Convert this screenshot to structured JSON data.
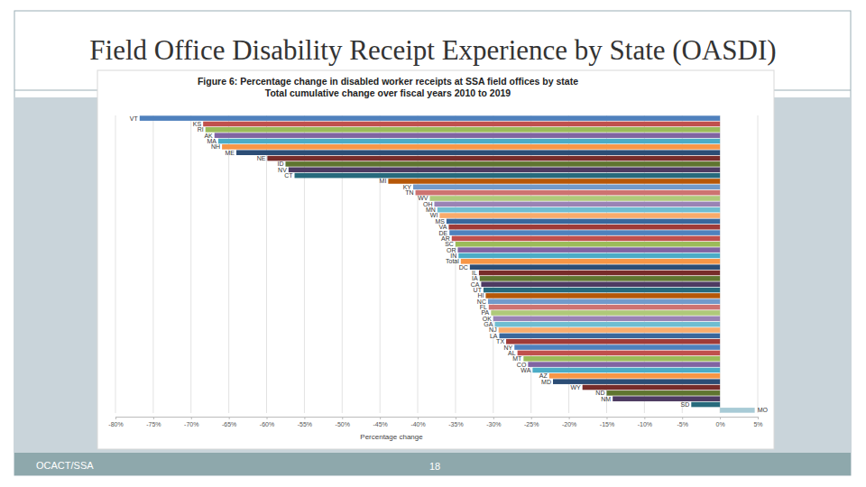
{
  "slide": {
    "title": "Field Office Disability Receipt Experience by State (OASDI)",
    "footer": "OCACT/SSA",
    "page_number": "18"
  },
  "chart_data": {
    "type": "bar",
    "orientation": "horizontal",
    "title": "Figure 6: Percentage change in disabled worker receipts at SSA field offices by state",
    "subtitle": "Total cumulative change over fiscal years 2010 to 2019",
    "xlabel": "Percentage change",
    "categories": [
      "VT",
      "KS",
      "RI",
      "AK",
      "MA",
      "NH",
      "ME",
      "NE",
      "ID",
      "NV",
      "CT",
      "MI",
      "KY",
      "TN",
      "WV",
      "OH",
      "MN",
      "WI",
      "MS",
      "VA",
      "DE",
      "AR",
      "SC",
      "OR",
      "IN",
      "Total",
      "DC",
      "IL",
      "IA",
      "CA",
      "UT",
      "HI",
      "NC",
      "FL",
      "PA",
      "OK",
      "GA",
      "NJ",
      "LA",
      "TX",
      "NY",
      "AL",
      "MT",
      "CO",
      "WA",
      "AZ",
      "MD",
      "WY",
      "ND",
      "NM",
      "SD",
      "MO"
    ],
    "values": [
      -76.8,
      -68.4,
      -68.1,
      -66.9,
      -66.4,
      -65.9,
      -64.0,
      -59.9,
      -57.5,
      -57.1,
      -56.3,
      -43.9,
      -40.6,
      -40.3,
      -38.4,
      -37.8,
      -37.4,
      -37.1,
      -36.2,
      -35.9,
      -35.8,
      -35.5,
      -35.0,
      -34.7,
      -34.6,
      -34.3,
      -33.1,
      -31.9,
      -31.8,
      -31.6,
      -31.3,
      -31.0,
      -30.7,
      -30.6,
      -30.3,
      -30.0,
      -29.8,
      -29.3,
      -29.2,
      -28.3,
      -27.2,
      -26.8,
      -26.0,
      -25.4,
      -24.8,
      -22.6,
      -22.1,
      -18.2,
      -15.0,
      -14.2,
      -3.8,
      4.6
    ],
    "colors": [
      "#4f81bd",
      "#c0504d",
      "#9bbb59",
      "#8064a2",
      "#4bacc6",
      "#f79646",
      "#2c4d75",
      "#772c2a",
      "#5f7530",
      "#4d3b62",
      "#276a7c",
      "#b65708",
      "#729aca",
      "#cd7371",
      "#afc97a",
      "#9983b5",
      "#6fbdd1",
      "#f9ab6b",
      "#3a679c",
      "#9f3b38",
      "#4f81bd",
      "#c0504d",
      "#9bbb59",
      "#8064a2",
      "#4bacc6",
      "#f79646",
      "#2c4d75",
      "#772c2a",
      "#5f7530",
      "#4d3b62",
      "#276a7c",
      "#b65708",
      "#729aca",
      "#cd7371",
      "#afc97a",
      "#9983b5",
      "#6fbdd1",
      "#f9ab6b",
      "#3a679c",
      "#9f3b38",
      "#4f81bd",
      "#c0504d",
      "#9bbb59",
      "#8064a2",
      "#4bacc6",
      "#f79646",
      "#2c4d75",
      "#772c2a",
      "#5f7530",
      "#4d3b62",
      "#276a7c",
      "#a8cbd6"
    ],
    "xlim": [
      -80,
      5
    ],
    "xticks": [
      {
        "value": -80,
        "label": "-80%"
      },
      {
        "value": -75,
        "label": "-75%"
      },
      {
        "value": -70,
        "label": "-70%"
      },
      {
        "value": -65,
        "label": "-65%"
      },
      {
        "value": -60,
        "label": "-60%"
      },
      {
        "value": -55,
        "label": "-55%"
      },
      {
        "value": -50,
        "label": "-50%"
      },
      {
        "value": -45,
        "label": "-45%"
      },
      {
        "value": -40,
        "label": "-40%"
      },
      {
        "value": -35,
        "label": "-35%"
      },
      {
        "value": -30,
        "label": "-30%"
      },
      {
        "value": -25,
        "label": "-25%"
      },
      {
        "value": -20,
        "label": "-20%"
      },
      {
        "value": -15,
        "label": "-15%"
      },
      {
        "value": -10,
        "label": "-10%"
      },
      {
        "value": -5,
        "label": "-5%"
      },
      {
        "value": 0,
        "label": "0%"
      },
      {
        "value": 5,
        "label": "5%"
      }
    ],
    "grid": true
  }
}
